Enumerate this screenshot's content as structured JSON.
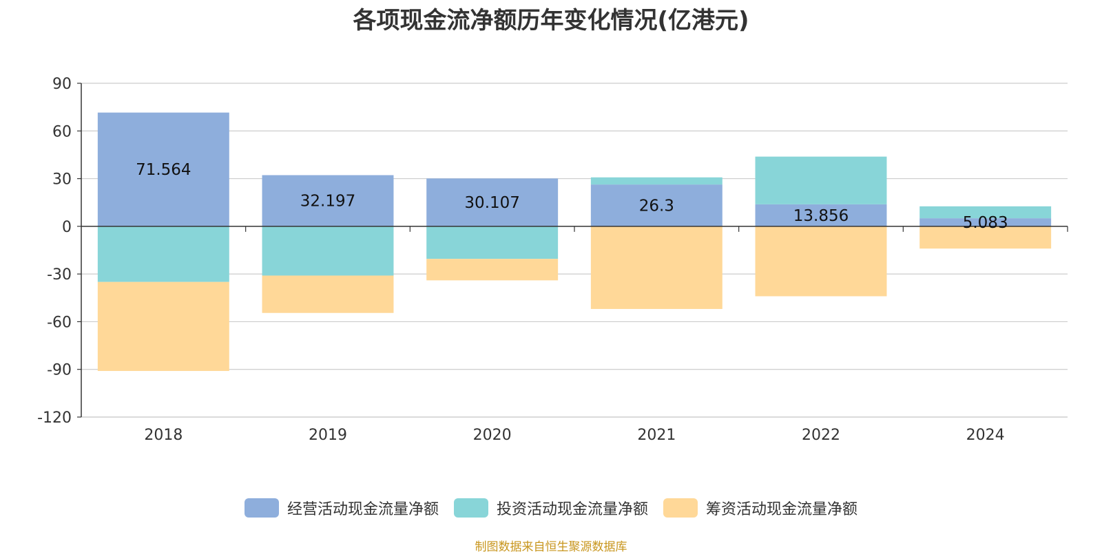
{
  "chart_data": {
    "type": "bar",
    "stacked": true,
    "title": "各项现金流净额历年变化情况(亿港元)",
    "categories": [
      "2018",
      "2019",
      "2020",
      "2021",
      "2022",
      "2024"
    ],
    "y_ticks": [
      "90",
      "60",
      "30",
      "0",
      "-30",
      "-60",
      "-90",
      "-120"
    ],
    "ylim": [
      -120,
      90
    ],
    "grid": true,
    "legend_position": "bottom-center",
    "series": [
      {
        "name": "经营活动现金流量净额",
        "color": "#8eaedc",
        "values": [
          71.564,
          32.197,
          30.107,
          26.3,
          13.856,
          5.083
        ],
        "data_labels": [
          "71.564",
          "32.197",
          "30.107",
          "26.3",
          "13.856",
          "5.083"
        ]
      },
      {
        "name": "投资活动现金流量净额",
        "color": "#88d5d8",
        "values": [
          -35,
          -31,
          -20.5,
          4.5,
          30,
          7.5
        ]
      },
      {
        "name": "筹资活动现金流量净额",
        "color": "#ffd898",
        "values": [
          -56,
          -23.5,
          -13.5,
          -52,
          -44,
          -14
        ]
      }
    ]
  },
  "footer": {
    "source": "制图数据来自恒生聚源数据库"
  }
}
